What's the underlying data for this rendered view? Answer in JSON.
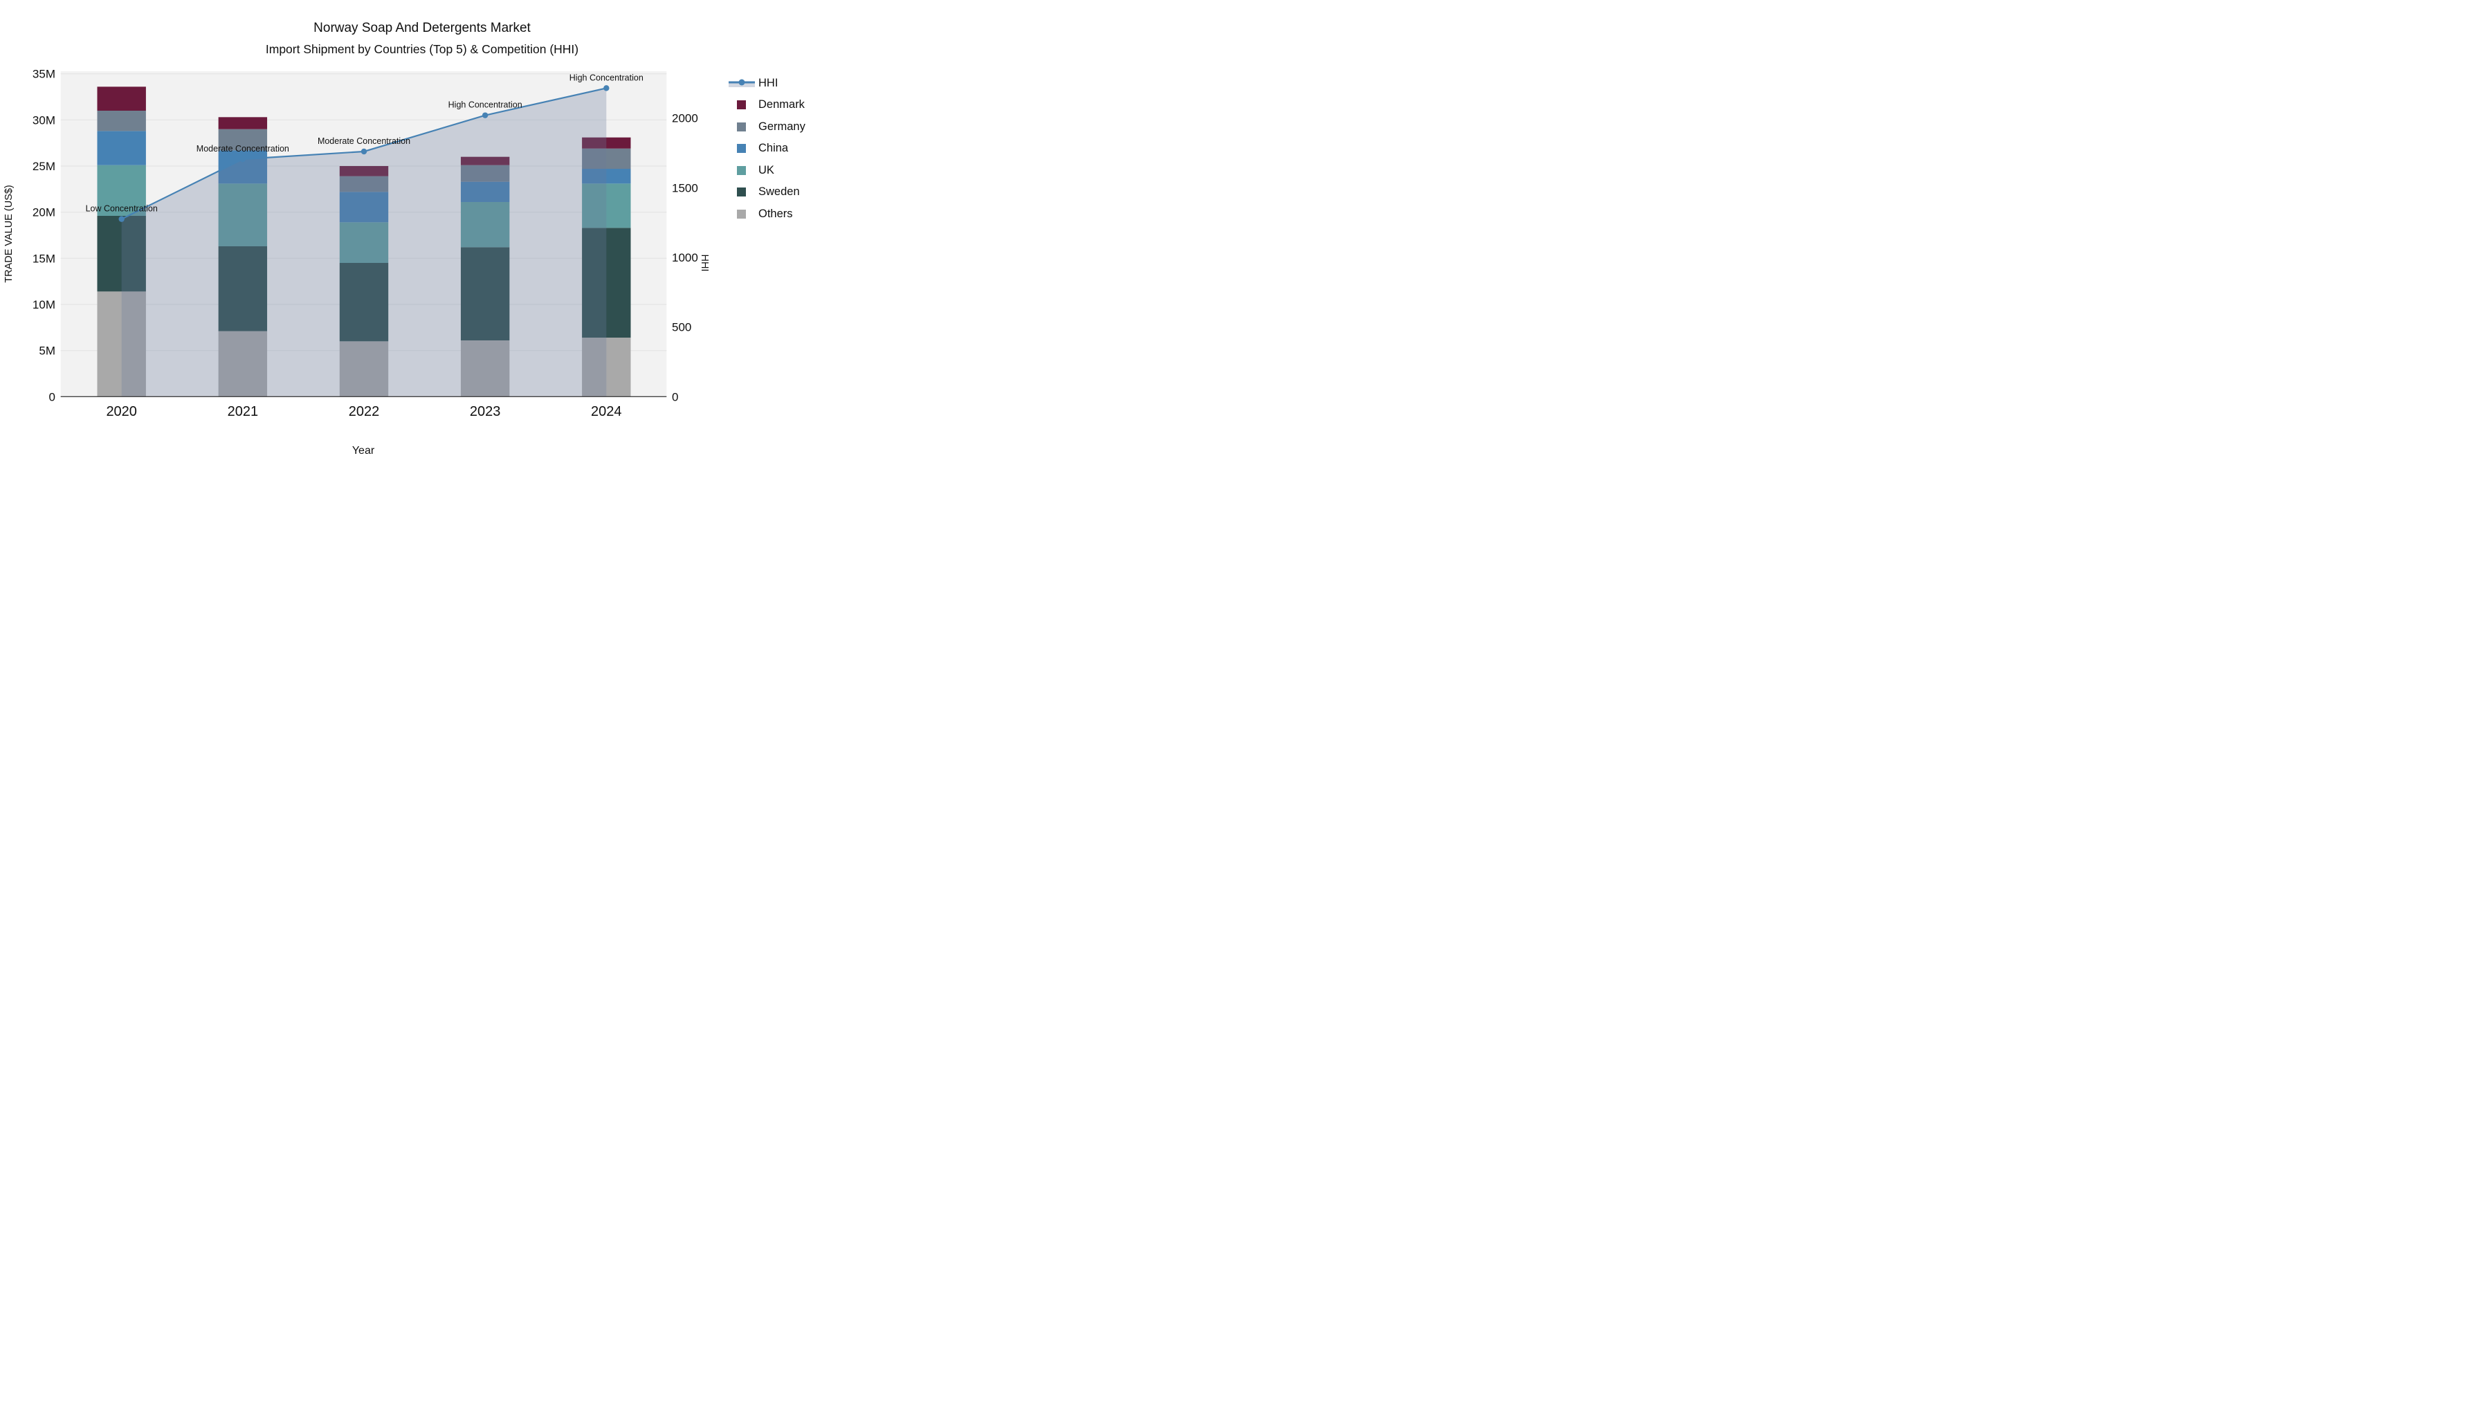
{
  "title": {
    "line1": "Norway Soap And Detergents Market",
    "line2": "Import Shipment by Countries (Top 5) & Competition (HHI)"
  },
  "axes": {
    "y_left_label": "TRADE VALUE (US$)",
    "y_right_label": "HHI",
    "x_label": "Year",
    "y_left_tick_labels": [
      "0",
      "5M",
      "10M",
      "15M",
      "20M",
      "25M",
      "30M",
      "35M"
    ],
    "y_left_tick_values_M": [
      0,
      5,
      10,
      15,
      20,
      25,
      30,
      35
    ],
    "y_right_tick_labels": [
      "0",
      "500",
      "1000",
      "1500",
      "2000"
    ],
    "y_right_tick_values": [
      0,
      500,
      1000,
      1500,
      2000
    ]
  },
  "chart_data": {
    "type": "combo-stacked-bar-and-line-area",
    "categories": [
      "2020",
      "2021",
      "2022",
      "2023",
      "2024"
    ],
    "values_unit": "millions USD",
    "stack_order_bottom_to_top": [
      "Others",
      "Sweden",
      "UK",
      "China",
      "Germany",
      "Denmark"
    ],
    "series": [
      {
        "name": "Others",
        "color": "#a9a9a9",
        "values": [
          11.4,
          7.1,
          6.0,
          6.1,
          6.4
        ]
      },
      {
        "name": "Sweden",
        "color": "#2f4f4f",
        "values": [
          8.2,
          9.2,
          8.5,
          10.1,
          11.9
        ]
      },
      {
        "name": "UK",
        "color": "#5f9ea0",
        "values": [
          5.5,
          6.8,
          4.4,
          4.9,
          4.8
        ]
      },
      {
        "name": "China",
        "color": "#4682b4",
        "values": [
          3.7,
          3.6,
          3.3,
          2.2,
          1.6
        ]
      },
      {
        "name": "Germany",
        "color": "#708090",
        "values": [
          2.2,
          2.3,
          1.7,
          1.8,
          2.2
        ]
      },
      {
        "name": "Denmark",
        "color": "#6b1a3c",
        "values": [
          2.6,
          1.3,
          1.1,
          0.9,
          1.2
        ]
      }
    ],
    "bar_totals_M": [
      33.6,
      30.3,
      25.0,
      26.0,
      28.1
    ],
    "hhi": {
      "name": "HHI",
      "line_color": "#4682b4",
      "area_color": "rgba(105,122,155,0.30)",
      "values": [
        1275,
        1705,
        1760,
        2020,
        2215
      ]
    },
    "annotations": [
      {
        "text": "Low Concentration",
        "category": "2020"
      },
      {
        "text": "Moderate Concentration",
        "category": "2021"
      },
      {
        "text": "Moderate Concentration",
        "category": "2022"
      },
      {
        "text": "High Concentration",
        "category": "2023"
      },
      {
        "text": "High Concentration",
        "category": "2024"
      }
    ],
    "xlabel": "Year",
    "ylabel": "TRADE VALUE (US$)",
    "ylabel_right": "HHI",
    "ylim_left_M": [
      0,
      35.5
    ],
    "ylim_right": [
      0,
      2350
    ],
    "grid": "horizontal",
    "plot_background": "#f2f2f2",
    "gridline_color": "#e4e4e4",
    "axis_line_color": "#444444",
    "legend_position": "right"
  },
  "legend": {
    "items": [
      {
        "label": "HHI",
        "type": "line",
        "color": "#4682b4",
        "area": "rgba(105,122,155,0.30)"
      },
      {
        "label": "Denmark",
        "type": "square",
        "color": "#6b1a3c"
      },
      {
        "label": "Germany",
        "type": "square",
        "color": "#708090"
      },
      {
        "label": "China",
        "type": "square",
        "color": "#4682b4"
      },
      {
        "label": "UK",
        "type": "square",
        "color": "#5f9ea0"
      },
      {
        "label": "Sweden",
        "type": "square",
        "color": "#2f4f4f"
      },
      {
        "label": "Others",
        "type": "square",
        "color": "#a9a9a9"
      }
    ]
  }
}
